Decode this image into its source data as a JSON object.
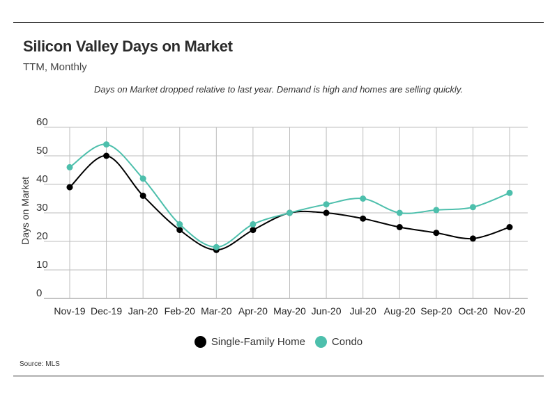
{
  "header": {
    "title": "Silicon Valley Days on Market",
    "subtitle": "TTM, Monthly",
    "note": "Days on Market dropped relative to last year. Demand is high and homes are selling quickly."
  },
  "source": "Source:  MLS",
  "colors": {
    "single_family": "#000000",
    "condo": "#4dbfac",
    "grid": "#bdbdbd"
  },
  "chart_data": {
    "type": "line",
    "title": "Silicon Valley Days on Market",
    "subtitle": "TTM, Monthly",
    "xlabel": "",
    "ylabel": "Days on Market",
    "ylim": [
      0,
      60
    ],
    "yticks": [
      0,
      10,
      20,
      30,
      40,
      50,
      60
    ],
    "grid": true,
    "legend": "bottom-center",
    "categories": [
      "Nov-19",
      "Dec-19",
      "Jan-20",
      "Feb-20",
      "Mar-20",
      "Apr-20",
      "May-20",
      "Jun-20",
      "Jul-20",
      "Aug-20",
      "Sep-20",
      "Oct-20",
      "Nov-20"
    ],
    "series": [
      {
        "name": "Single-Family Home",
        "color": "#000000",
        "values": [
          39,
          50,
          36,
          24,
          17,
          24,
          30,
          30,
          28,
          25,
          23,
          21,
          25
        ]
      },
      {
        "name": "Condo",
        "color": "#4dbfac",
        "values": [
          46,
          54,
          42,
          26,
          18,
          26,
          30,
          33,
          35,
          30,
          31,
          32,
          37
        ]
      }
    ]
  }
}
